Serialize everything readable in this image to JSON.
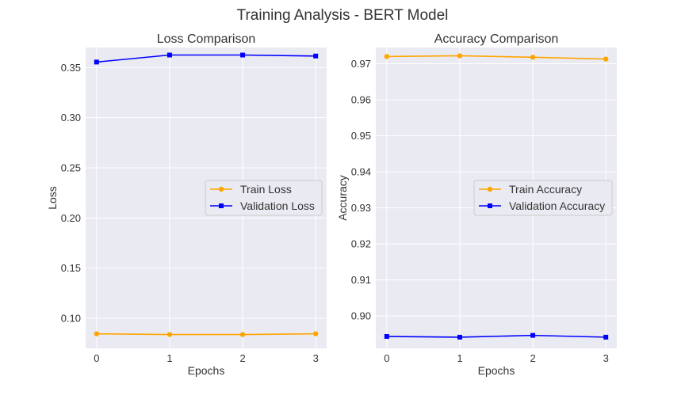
{
  "figure": {
    "title": "Training Analysis - BERT Model"
  },
  "chart_data": [
    {
      "type": "line",
      "title": "Loss Comparison",
      "xlabel": "Epochs",
      "ylabel": "Loss",
      "x": [
        0,
        1,
        2,
        3
      ],
      "xticks": [
        "0",
        "1",
        "2",
        "3"
      ],
      "yticks": [
        "0.10",
        "0.15",
        "0.20",
        "0.25",
        "0.30",
        "0.35"
      ],
      "xlim": [
        -0.15,
        3.15
      ],
      "ylim": [
        0.07,
        0.37
      ],
      "grid": true,
      "legend": "center-right",
      "series": [
        {
          "name": "Train Loss",
          "color": "#ffa500",
          "marker": "circle",
          "values": [
            0.0845,
            0.0838,
            0.0838,
            0.0845
          ]
        },
        {
          "name": "Validation Loss",
          "color": "#0000ff",
          "marker": "square",
          "values": [
            0.3555,
            0.3625,
            0.3625,
            0.3615
          ]
        }
      ]
    },
    {
      "type": "line",
      "title": "Accuracy Comparison",
      "xlabel": "Epochs",
      "ylabel": "Accuracy",
      "x": [
        0,
        1,
        2,
        3
      ],
      "xticks": [
        "0",
        "1",
        "2",
        "3"
      ],
      "yticks": [
        "0.90",
        "0.91",
        "0.92",
        "0.93",
        "0.94",
        "0.95",
        "0.96",
        "0.97"
      ],
      "xlim": [
        -0.15,
        3.15
      ],
      "ylim": [
        0.891,
        0.9745
      ],
      "grid": true,
      "legend": "center-right",
      "series": [
        {
          "name": "Train Accuracy",
          "color": "#ffa500",
          "marker": "circle",
          "values": [
            0.972,
            0.9722,
            0.9718,
            0.9713
          ]
        },
        {
          "name": "Validation Accuracy",
          "color": "#0000ff",
          "marker": "square",
          "values": [
            0.8943,
            0.8941,
            0.8946,
            0.8941
          ]
        }
      ]
    }
  ]
}
